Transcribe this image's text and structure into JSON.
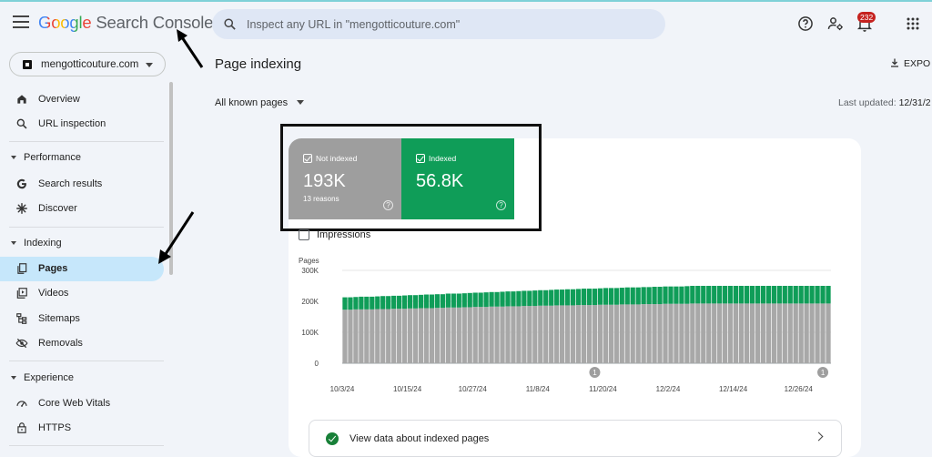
{
  "header": {
    "logo_google": "Google",
    "logo_product": "Search Console",
    "search_placeholder": "Inspect any URL in \"mengotticouture.com\"",
    "notification_count": "232"
  },
  "sidebar": {
    "property": "mengotticouture.com",
    "items": [
      {
        "label": "Overview"
      },
      {
        "label": "URL inspection"
      }
    ],
    "sections": [
      {
        "label": "Performance",
        "items": [
          {
            "label": "Search results"
          },
          {
            "label": "Discover"
          }
        ]
      },
      {
        "label": "Indexing",
        "items": [
          {
            "label": "Pages"
          },
          {
            "label": "Videos"
          },
          {
            "label": "Sitemaps"
          },
          {
            "label": "Removals"
          }
        ]
      },
      {
        "label": "Experience",
        "items": [
          {
            "label": "Core Web Vitals"
          },
          {
            "label": "HTTPS"
          }
        ]
      }
    ]
  },
  "main": {
    "title": "Page indexing",
    "export_label": "EXPO",
    "filter_label": "All known pages",
    "updated_label": "Last updated:",
    "updated_value": "12/31/2",
    "tiles": {
      "not_indexed": {
        "label": "Not indexed",
        "value": "193K",
        "sub": "13 reasons"
      },
      "indexed": {
        "label": "Indexed",
        "value": "56.8K"
      }
    },
    "impressions_label": "Impressions",
    "view_data_label": "View data about indexed pages"
  },
  "colors": {
    "indexed": "#0f9d58",
    "not_indexed": "#a8a8a8",
    "active_nav": "#c6e7fb",
    "badge": "#c5221f"
  },
  "chart_data": {
    "type": "bar",
    "stacked": true,
    "ylabel": "Pages",
    "yticks": [
      "0",
      "100K",
      "200K",
      "300K"
    ],
    "ylim": [
      0,
      300000
    ],
    "xtick_labels": [
      "10/3/24",
      "10/15/24",
      "10/27/24",
      "11/8/24",
      "11/20/24",
      "12/2/24",
      "12/14/24",
      "12/26/24"
    ],
    "annotations": [
      "1",
      "1"
    ],
    "series": [
      {
        "name": "Not indexed",
        "color": "#a8a8a8",
        "values": [
          173000,
          173000,
          174000,
          174000,
          174000,
          174000,
          175000,
          175000,
          175000,
          176000,
          176000,
          176000,
          177000,
          177000,
          178000,
          178000,
          178000,
          179000,
          179000,
          180000,
          180000,
          180000,
          181000,
          181000,
          182000,
          182000,
          182000,
          183000,
          183000,
          183000,
          184000,
          184000,
          184000,
          185000,
          185000,
          185000,
          186000,
          186000,
          186000,
          187000,
          187000,
          187000,
          187000,
          188000,
          188000,
          188000,
          188000,
          189000,
          189000,
          189000,
          189000,
          190000,
          190000,
          190000,
          190000,
          191000,
          191000,
          191000,
          191000,
          192000,
          192000,
          192000,
          192000,
          192000,
          193000,
          193000,
          193000,
          193000,
          193000,
          193000,
          193000,
          193000,
          193000,
          193000,
          193000,
          193000,
          193000,
          193000,
          193000,
          193000,
          193000,
          193000,
          193000,
          193000,
          193000,
          193000,
          193000,
          193000,
          193000,
          193000
        ]
      },
      {
        "name": "Indexed",
        "color": "#0f9d58",
        "values": [
          40000,
          40000,
          40000,
          41000,
          41000,
          41000,
          41000,
          42000,
          42000,
          42000,
          42000,
          43000,
          43000,
          43000,
          43000,
          44000,
          44000,
          44000,
          44000,
          45000,
          45000,
          45000,
          45000,
          46000,
          46000,
          46000,
          47000,
          47000,
          47000,
          48000,
          48000,
          48000,
          49000,
          49000,
          49000,
          50000,
          50000,
          50000,
          51000,
          51000,
          51000,
          52000,
          52000,
          52000,
          53000,
          53000,
          53000,
          53000,
          54000,
          54000,
          54000,
          54000,
          55000,
          55000,
          55000,
          55000,
          55000,
          56000,
          56000,
          56000,
          56000,
          56000,
          56000,
          57000,
          57000,
          57000,
          57000,
          57000,
          57000,
          57000,
          57000,
          57000,
          57000,
          57000,
          57000,
          57000,
          57000,
          57000,
          57000,
          57000,
          57000,
          57000,
          57000,
          57000,
          57000,
          57000,
          57000,
          57000,
          57000,
          57000
        ]
      }
    ]
  }
}
